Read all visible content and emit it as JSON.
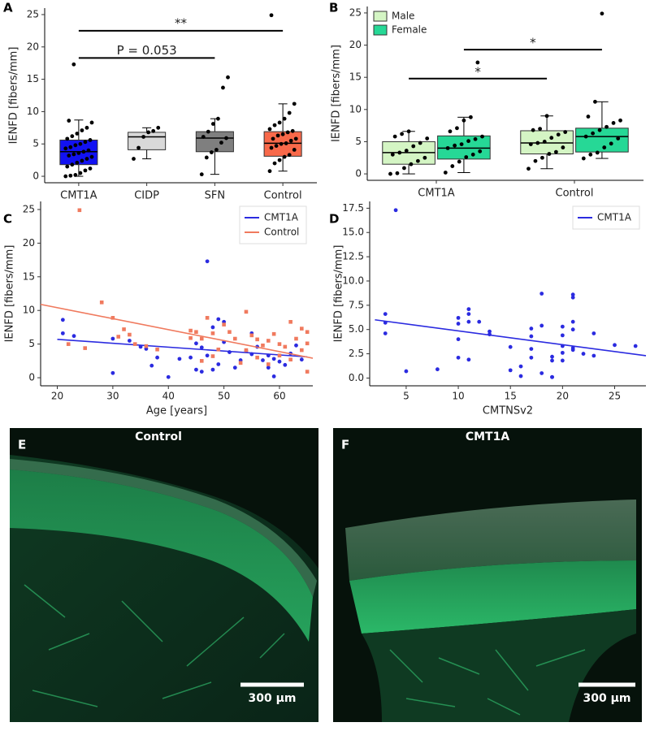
{
  "chart_data": [
    {
      "type": "box",
      "panel_label": "A",
      "ylabel": "IENFD [fibers/mm]",
      "categories": [
        "CMT1A",
        "CIDP",
        "SFN",
        "Control"
      ],
      "colors": [
        "#1212f2",
        "#d9d9d9",
        "#7f7f7f",
        "#f8694a"
      ],
      "boxes": [
        {
          "whislo": 0,
          "q1": 1.8,
          "med": 3.8,
          "q3": 5.6,
          "whishi": 8.7,
          "points": [
            0,
            0.1,
            0.2,
            0.5,
            0.9,
            1.2,
            1.5,
            1.8,
            2.1,
            2.4,
            2.7,
            3.0,
            3.2,
            3.4,
            3.6,
            3.8,
            4.0,
            4.3,
            4.5,
            4.8,
            5.0,
            5.3,
            5.6,
            5.8,
            6.2,
            6.6,
            7.1,
            7.5,
            8.3,
            8.6,
            17.3
          ]
        },
        {
          "whislo": 2.7,
          "q1": 4.1,
          "med": 6.1,
          "q3": 6.8,
          "whishi": 7.5,
          "points": [
            2.7,
            4.4,
            6.1,
            6.8,
            7.0,
            7.5
          ]
        },
        {
          "whislo": 0.3,
          "q1": 3.8,
          "med": 5.9,
          "q3": 6.9,
          "whishi": 8.9,
          "points": [
            0.3,
            2.9,
            3.7,
            4.1,
            5.2,
            5.9,
            6.1,
            6.9,
            8.1,
            8.9,
            13.7,
            15.3
          ]
        },
        {
          "whislo": 0.8,
          "q1": 3.1,
          "med": 5.1,
          "q3": 6.9,
          "whishi": 11.2,
          "points": [
            0.8,
            2.0,
            2.5,
            3.0,
            3.3,
            4.1,
            4.4,
            4.7,
            5.0,
            5.1,
            5.5,
            5.8,
            5.8,
            6.3,
            6.5,
            6.8,
            7.0,
            7.3,
            7.9,
            8.3,
            8.9,
            9.8,
            11.2,
            24.9
          ]
        }
      ],
      "brackets": [
        {
          "from": "CMT1A",
          "to": "Control",
          "y": 22.5,
          "label": "**"
        },
        {
          "from": "CMT1A",
          "to": "SFN",
          "y": 18.3,
          "label": "P = 0.053"
        }
      ],
      "ylim": [
        -1,
        26
      ],
      "yticks": [
        0,
        5,
        10,
        15,
        20,
        25
      ]
    },
    {
      "type": "box",
      "panel_label": "B",
      "ylabel": "IENFD [fibers/mm]",
      "categories": [
        "CMT1A",
        "Control"
      ],
      "series": [
        {
          "name": "Male",
          "color": "#d4f5c4",
          "boxes": [
            {
              "whislo": 0,
              "q1": 1.5,
              "med": 3.3,
              "q3": 5.0,
              "whishi": 6.6,
              "points": [
                0,
                0.1,
                0.9,
                1.5,
                2.0,
                2.5,
                3.0,
                3.3,
                3.6,
                4.3,
                4.8,
                5.5,
                5.8,
                6.2,
                6.6
              ]
            },
            {
              "whislo": 0.8,
              "q1": 3.1,
              "med": 4.8,
              "q3": 6.7,
              "whishi": 9.0,
              "points": [
                0.8,
                2.0,
                2.5,
                3.1,
                3.4,
                4.1,
                4.6,
                4.8,
                5.0,
                5.6,
                6.1,
                6.5,
                6.8,
                7.0,
                9.0
              ]
            }
          ]
        },
        {
          "name": "Female",
          "color": "#26d896",
          "boxes": [
            {
              "whislo": 0.2,
              "q1": 2.3,
              "med": 4.0,
              "q3": 5.9,
              "whishi": 8.8,
              "points": [
                0.2,
                1.2,
                1.9,
                2.6,
                3.0,
                3.5,
                4.0,
                4.4,
                4.6,
                5.1,
                5.4,
                5.8,
                6.6,
                7.1,
                8.3,
                8.8,
                17.3
              ]
            },
            {
              "whislo": 2.4,
              "q1": 3.4,
              "med": 5.8,
              "q3": 7.1,
              "whishi": 11.2,
              "points": [
                2.4,
                3.0,
                3.3,
                4.1,
                4.7,
                5.5,
                5.8,
                6.3,
                6.8,
                7.3,
                7.9,
                8.3,
                8.9,
                11.2,
                24.9
              ]
            }
          ]
        }
      ],
      "brackets": [
        {
          "from": {
            "group": "CMT1A",
            "series": "Male"
          },
          "to": {
            "group": "Control",
            "series": "Male"
          },
          "y": 14.8,
          "label": "*"
        },
        {
          "from": {
            "group": "CMT1A",
            "series": "Female"
          },
          "to": {
            "group": "Control",
            "series": "Female"
          },
          "y": 19.3,
          "label": "*"
        }
      ],
      "legend": "top-left",
      "ylim": [
        -1,
        26
      ],
      "yticks": [
        0,
        5,
        10,
        15,
        20,
        25
      ]
    },
    {
      "type": "scatter",
      "panel_label": "C",
      "xlabel": "Age [years]",
      "ylabel": "IENFD [fibers/mm]",
      "series": [
        {
          "name": "CMT1A",
          "color": "#2b2be0",
          "marker": "circle",
          "x": [
            21,
            21,
            23,
            30,
            30,
            33,
            35,
            36,
            37,
            38,
            40,
            42,
            44,
            45,
            45,
            46,
            46,
            47,
            47,
            48,
            48,
            49,
            49,
            50,
            50,
            51,
            52,
            53,
            54,
            55,
            55,
            56,
            57,
            58,
            58,
            59,
            59,
            60,
            61,
            62,
            63,
            64
          ],
          "values": [
            8.6,
            6.6,
            6.2,
            5.8,
            0.7,
            5.5,
            4.6,
            4.3,
            1.8,
            3.0,
            0.1,
            2.8,
            3.0,
            5.1,
            1.2,
            4.5,
            0.9,
            17.3,
            3.3,
            1.2,
            7.5,
            2.0,
            8.7,
            8.3,
            5.3,
            3.8,
            1.5,
            2.6,
            4.0,
            6.6,
            3.5,
            4.6,
            2.6,
            1.5,
            3.3,
            0.2,
            2.8,
            2.4,
            1.9,
            3.6,
            4.8,
            2.7
          ],
          "fit": {
            "x": [
              20,
              65
            ],
            "y": [
              5.7,
              3.1
            ]
          }
        },
        {
          "name": "Control",
          "color": "#f07a5e",
          "marker": "square",
          "x": [
            22,
            24,
            25,
            28,
            30,
            31,
            32,
            33,
            34,
            36,
            38,
            44,
            44,
            45,
            46,
            46,
            47,
            48,
            48,
            49,
            50,
            51,
            52,
            53,
            54,
            54,
            55,
            56,
            56,
            57,
            58,
            58,
            59,
            60,
            60,
            61,
            62,
            62,
            63,
            64,
            64,
            65,
            65,
            65
          ],
          "values": [
            5.0,
            24.9,
            4.4,
            11.2,
            8.9,
            6.1,
            7.2,
            6.4,
            5.0,
            4.7,
            4.2,
            7.0,
            5.9,
            6.8,
            5.8,
            2.5,
            8.9,
            6.6,
            3.2,
            4.2,
            7.9,
            6.8,
            5.8,
            2.2,
            9.8,
            4.1,
            6.3,
            5.7,
            3.0,
            4.8,
            5.5,
            2.0,
            6.5,
            3.3,
            5.0,
            4.6,
            8.3,
            2.7,
            5.8,
            7.3,
            4.1,
            5.1,
            0.9,
            6.8
          ],
          "fit": {
            "x": [
              17,
              66
            ],
            "y": [
              10.9,
              2.9
            ]
          }
        }
      ],
      "legend": "top-right",
      "xlim": [
        17,
        66
      ],
      "xticks": [
        20,
        30,
        40,
        50,
        60
      ],
      "ylim": [
        -1.2,
        26.2
      ],
      "yticks": [
        0,
        5,
        10,
        15,
        20,
        25
      ]
    },
    {
      "type": "scatter",
      "panel_label": "D",
      "xlabel": "CMTNSv2",
      "ylabel": "IENFD [fibers/mm]",
      "series": [
        {
          "name": "CMT1A",
          "color": "#2b2be0",
          "marker": "circle",
          "x": [
            3,
            3,
            3,
            4,
            5,
            8,
            10,
            10,
            10,
            10,
            11,
            11,
            11,
            11,
            12,
            13,
            13,
            15,
            15,
            16,
            16,
            17,
            17,
            17,
            17,
            18,
            18,
            18,
            19,
            19,
            19,
            19,
            20,
            20,
            20,
            20,
            20,
            21,
            21,
            21,
            21,
            21,
            21,
            22,
            23,
            23,
            25,
            27
          ],
          "values": [
            6.6,
            5.7,
            4.6,
            17.3,
            0.7,
            0.9,
            6.2,
            5.6,
            4.0,
            2.1,
            7.1,
            6.6,
            5.8,
            1.9,
            5.8,
            4.8,
            4.5,
            3.2,
            0.8,
            1.2,
            0.2,
            5.1,
            4.3,
            3.0,
            2.1,
            8.7,
            5.4,
            0.5,
            2.2,
            1.8,
            0.1,
            0.1,
            5.3,
            4.4,
            3.3,
            2.6,
            1.8,
            8.6,
            8.3,
            5.8,
            5.0,
            3.1,
            2.9,
            2.5,
            4.6,
            2.3,
            3.4,
            3.3
          ],
          "fit": {
            "x": [
              2,
              28
            ],
            "y": [
              6.0,
              2.3
            ]
          }
        }
      ],
      "legend": "top-right",
      "xlim": [
        1.5,
        28
      ],
      "xticks": [
        5,
        10,
        15,
        20,
        25
      ],
      "ylim": [
        -0.8,
        18.2
      ],
      "yticks": [
        {
          "value": 0,
          "label": "0.0"
        },
        2.5,
        {
          "value": 5,
          "label": "5.0"
        },
        7.5,
        {
          "value": 10,
          "label": "10.0"
        },
        12.5,
        {
          "value": 15,
          "label": "15.0"
        },
        17.5
      ]
    }
  ],
  "images": [
    {
      "panel_label": "E",
      "title": "Control",
      "scale_bar": "300 µm"
    },
    {
      "panel_label": "F",
      "title": "CMT1A",
      "scale_bar": "300 µm"
    }
  ]
}
